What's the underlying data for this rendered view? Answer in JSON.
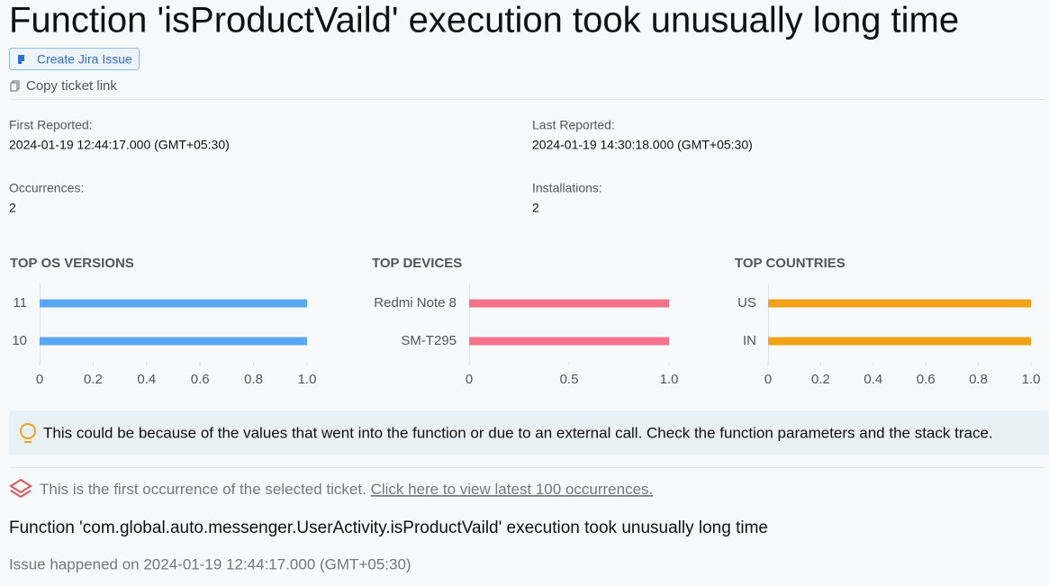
{
  "header": {
    "title": "Function 'isProductVaild' execution took unusually long time",
    "jira_button": "Create Jira Issue",
    "copy_link": "Copy ticket link"
  },
  "stats": [
    {
      "label": "First Reported:",
      "value": "2024-01-19 12:44:17.000 (GMT+05:30)"
    },
    {
      "label": "Last Reported:",
      "value": "2024-01-19 14:30:18.000 (GMT+05:30)"
    },
    {
      "label": "Occurrences:",
      "value": "2"
    },
    {
      "label": "Installations:",
      "value": "2"
    }
  ],
  "chart_data": [
    {
      "type": "bar",
      "orientation": "horizontal",
      "title": "TOP OS VERSIONS",
      "categories": [
        "11",
        "10"
      ],
      "values": [
        1,
        1
      ],
      "color": "#5aa7f6",
      "xlim": [
        0,
        1
      ],
      "xticks": [
        0,
        0.2,
        0.4,
        0.6,
        0.8,
        {
          "value": 1,
          "label": "1.0"
        }
      ]
    },
    {
      "type": "bar",
      "orientation": "horizontal",
      "title": "TOP DEVICES",
      "categories": [
        "Redmi Note 8",
        "SM-T295"
      ],
      "values": [
        1,
        1
      ],
      "color": "#f6718a",
      "xlim": [
        0,
        1
      ],
      "xticks": [
        0,
        0.5,
        {
          "value": 1,
          "label": "1.0"
        }
      ]
    },
    {
      "type": "bar",
      "orientation": "horizontal",
      "title": "TOP COUNTRIES",
      "categories": [
        "US",
        "IN"
      ],
      "values": [
        1,
        1
      ],
      "color": "#f3a118",
      "xlim": [
        0,
        1
      ],
      "xticks": [
        0,
        0.2,
        0.4,
        0.6,
        0.8,
        {
          "value": 1,
          "label": "1.0"
        }
      ]
    }
  ],
  "hint": "This could be because of the values that went into the function or due to an external call. Check the function parameters and the stack trace.",
  "occurrence": {
    "text": "This is the first occurrence of the selected ticket.",
    "link": "Click here to view latest 100 occurrences."
  },
  "detail": {
    "message": "Function 'com.global.auto.messenger.UserActivity.isProductVaild' execution took unusually long time",
    "happened": "Issue happened on 2024-01-19 12:44:17.000 (GMT+05:30)"
  }
}
